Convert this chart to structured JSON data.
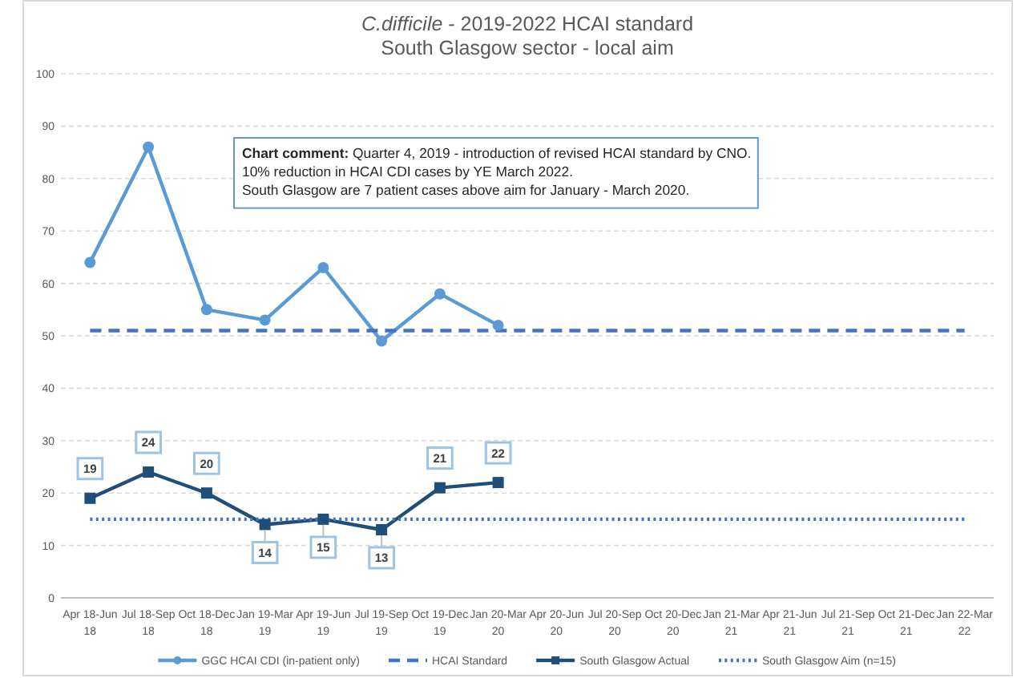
{
  "chart_data": {
    "type": "line",
    "title": "C.difficile - 2019-2022 HCAI standard",
    "subtitle": "South Glasgow sector - local aim",
    "categories": [
      "Apr 18-Jun 18",
      "Jul 18-Sep 18",
      "Oct 18-Dec 18",
      "Jan 19-Mar 19",
      "Apr 19-Jun 19",
      "Jul 19-Sep 19",
      "Oct 19-Dec 19",
      "Jan 20-Mar 20",
      "Apr 20-Jun 20",
      "Jul 20-Sep 20",
      "Oct 20-Dec 20",
      "Jan 21-Mar 21",
      "Apr 21-Jun 21",
      "Jul 21-Sep 21",
      "Oct 21-Dec 21",
      "Jan 22-Mar 22"
    ],
    "series": [
      {
        "name": "GGC HCAI CDI (in-patient only)",
        "color": "#5b9bd5",
        "marker": "circle",
        "line_style": "solid",
        "values": [
          64,
          86,
          55,
          53,
          63,
          49,
          58,
          52,
          null,
          null,
          null,
          null,
          null,
          null,
          null,
          null
        ]
      },
      {
        "name": "HCAI Standard",
        "color": "#4472c4",
        "marker": "none",
        "line_style": "dashed",
        "values": [
          51,
          51,
          51,
          51,
          51,
          51,
          51,
          51,
          51,
          51,
          51,
          51,
          51,
          51,
          51,
          51
        ]
      },
      {
        "name": "South Glasgow Actual",
        "color": "#1f4e79",
        "marker": "square",
        "line_style": "solid",
        "values": [
          19,
          24,
          20,
          14,
          15,
          13,
          21,
          22,
          null,
          null,
          null,
          null,
          null,
          null,
          null,
          null
        ],
        "value_labels": [
          "19",
          "24",
          "20",
          "14",
          "15",
          "13",
          "21",
          "22",
          null,
          null,
          null,
          null,
          null,
          null,
          null,
          null
        ]
      },
      {
        "name": "South Glasgow Aim (n=15)",
        "color": "#4472c4",
        "marker": "none",
        "line_style": "dotted",
        "values": [
          15,
          15,
          15,
          15,
          15,
          15,
          15,
          15,
          15,
          15,
          15,
          15,
          15,
          15,
          15,
          15
        ]
      }
    ],
    "ylim": [
      0,
      100
    ],
    "yticks": [
      0,
      10,
      20,
      30,
      40,
      50,
      60,
      70,
      80,
      90,
      100
    ],
    "grid": "y",
    "legend": "bottom",
    "annotations": [
      "Chart comment: Quarter 4, 2019 - introduction of revised HCAI standard by CNO.",
      "10% reduction in HCAI CDI cases by YE March 2022.",
      "South Glasgow are 7 patient cases above aim for January - March 2020."
    ]
  }
}
